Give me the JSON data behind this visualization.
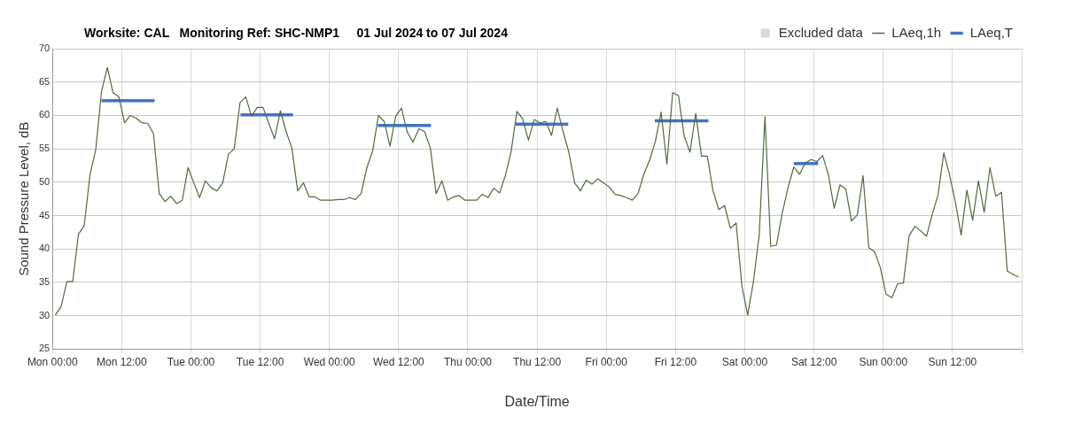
{
  "chart_data": {
    "type": "line",
    "title": "Worksite: CAL   Monitoring Ref: SHC-NMP1     01 Jul 2024 to 07 Jul 2024",
    "xlabel": "Date/Time",
    "ylabel": "Sound Pressure Level, dB",
    "xlim": [
      "2024-07-01T00:00",
      "2024-07-08T00:00"
    ],
    "xticks": [
      {
        "value": "2024-07-01T00:00",
        "label": "Mon 00:00"
      },
      {
        "value": "2024-07-01T12:00",
        "label": "Mon 12:00"
      },
      {
        "value": "2024-07-02T00:00",
        "label": "Tue 00:00"
      },
      {
        "value": "2024-07-02T12:00",
        "label": "Tue 12:00"
      },
      {
        "value": "2024-07-03T00:00",
        "label": "Wed 00:00"
      },
      {
        "value": "2024-07-03T12:00",
        "label": "Wed 12:00"
      },
      {
        "value": "2024-07-04T00:00",
        "label": "Thu 00:00"
      },
      {
        "value": "2024-07-04T12:00",
        "label": "Thu 12:00"
      },
      {
        "value": "2024-07-05T00:00",
        "label": "Fri 00:00"
      },
      {
        "value": "2024-07-05T12:00",
        "label": "Fri 12:00"
      },
      {
        "value": "2024-07-06T00:00",
        "label": "Sat 00:00"
      },
      {
        "value": "2024-07-06T12:00",
        "label": "Sat 12:00"
      },
      {
        "value": "2024-07-07T00:00",
        "label": "Sun 00:00"
      },
      {
        "value": "2024-07-07T12:00",
        "label": "Sun 12:00"
      },
      {
        "value": "2024-07-08T00:00",
        "label": null
      }
    ],
    "ylim": [
      25,
      70
    ],
    "yticks": [
      25,
      30,
      35,
      40,
      45,
      50,
      55,
      60,
      65,
      70
    ],
    "grid": true,
    "legend": "top right",
    "marker": "none",
    "line_style": "solid",
    "series": [
      {
        "name": "Excluded data",
        "type": "area",
        "color": "#d9d9d9"
      },
      {
        "name": "LAeq,1h",
        "color": "#4f6b3a",
        "x": [
          "2024-07-01T00:30",
          "2024-07-01T01:30",
          "2024-07-01T02:30",
          "2024-07-01T03:30",
          "2024-07-01T04:30",
          "2024-07-01T05:30",
          "2024-07-01T06:30",
          "2024-07-01T07:30",
          "2024-07-01T08:30",
          "2024-07-01T09:30",
          "2024-07-01T10:30",
          "2024-07-01T11:30",
          "2024-07-01T12:30",
          "2024-07-01T13:30",
          "2024-07-01T14:30",
          "2024-07-01T15:30",
          "2024-07-01T16:30",
          "2024-07-01T17:30",
          "2024-07-01T18:30",
          "2024-07-01T19:30",
          "2024-07-01T20:30",
          "2024-07-01T21:30",
          "2024-07-01T22:30",
          "2024-07-01T23:30",
          "2024-07-02T00:30",
          "2024-07-02T01:30",
          "2024-07-02T02:30",
          "2024-07-02T03:30",
          "2024-07-02T04:30",
          "2024-07-02T05:30",
          "2024-07-02T06:30",
          "2024-07-02T07:30",
          "2024-07-02T08:30",
          "2024-07-02T09:30",
          "2024-07-02T10:30",
          "2024-07-02T11:30",
          "2024-07-02T12:30",
          "2024-07-02T13:30",
          "2024-07-02T14:30",
          "2024-07-02T15:30",
          "2024-07-02T16:30",
          "2024-07-02T17:30",
          "2024-07-02T18:30",
          "2024-07-02T19:30",
          "2024-07-02T20:30",
          "2024-07-02T21:30",
          "2024-07-02T22:30",
          "2024-07-02T23:30",
          "2024-07-03T00:30",
          "2024-07-03T01:30",
          "2024-07-03T02:30",
          "2024-07-03T03:30",
          "2024-07-03T04:30",
          "2024-07-03T05:30",
          "2024-07-03T06:30",
          "2024-07-03T07:30",
          "2024-07-03T08:30",
          "2024-07-03T09:30",
          "2024-07-03T10:30",
          "2024-07-03T11:30",
          "2024-07-03T12:30",
          "2024-07-03T13:30",
          "2024-07-03T14:30",
          "2024-07-03T15:30",
          "2024-07-03T16:30",
          "2024-07-03T17:30",
          "2024-07-03T18:30",
          "2024-07-03T19:30",
          "2024-07-03T20:30",
          "2024-07-03T21:30",
          "2024-07-03T22:30",
          "2024-07-03T23:30",
          "2024-07-04T00:30",
          "2024-07-04T01:30",
          "2024-07-04T02:30",
          "2024-07-04T03:30",
          "2024-07-04T04:30",
          "2024-07-04T05:30",
          "2024-07-04T06:30",
          "2024-07-04T07:30",
          "2024-07-04T08:30",
          "2024-07-04T09:30",
          "2024-07-04T10:30",
          "2024-07-04T11:30",
          "2024-07-04T12:30",
          "2024-07-04T13:30",
          "2024-07-04T14:30",
          "2024-07-04T15:30",
          "2024-07-04T16:30",
          "2024-07-04T17:30",
          "2024-07-04T18:30",
          "2024-07-04T19:30",
          "2024-07-04T20:30",
          "2024-07-04T21:30",
          "2024-07-04T22:30",
          "2024-07-04T23:30",
          "2024-07-05T00:30",
          "2024-07-05T01:30",
          "2024-07-05T02:30",
          "2024-07-05T03:30",
          "2024-07-05T04:30",
          "2024-07-05T05:30",
          "2024-07-05T06:30",
          "2024-07-05T07:30",
          "2024-07-05T08:30",
          "2024-07-05T09:30",
          "2024-07-05T10:30",
          "2024-07-05T11:30",
          "2024-07-05T12:30",
          "2024-07-05T13:30",
          "2024-07-05T14:30",
          "2024-07-05T15:30",
          "2024-07-05T16:30",
          "2024-07-05T17:30",
          "2024-07-05T18:30",
          "2024-07-05T19:30",
          "2024-07-05T20:30",
          "2024-07-05T21:30",
          "2024-07-05T22:30",
          "2024-07-05T23:30",
          "2024-07-06T00:30",
          "2024-07-06T01:30",
          "2024-07-06T02:30",
          "2024-07-06T03:30",
          "2024-07-06T04:30",
          "2024-07-06T05:30",
          "2024-07-06T06:30",
          "2024-07-06T07:30",
          "2024-07-06T08:30",
          "2024-07-06T09:30",
          "2024-07-06T10:30",
          "2024-07-06T11:30",
          "2024-07-06T12:30",
          "2024-07-06T13:30",
          "2024-07-06T14:30",
          "2024-07-06T15:30",
          "2024-07-06T16:30",
          "2024-07-06T17:30",
          "2024-07-06T18:30",
          "2024-07-06T19:30",
          "2024-07-06T20:30",
          "2024-07-06T21:30",
          "2024-07-06T22:30",
          "2024-07-06T23:30",
          "2024-07-07T00:30",
          "2024-07-07T01:30",
          "2024-07-07T02:30",
          "2024-07-07T03:30",
          "2024-07-07T04:30",
          "2024-07-07T05:30",
          "2024-07-07T06:30",
          "2024-07-07T07:30",
          "2024-07-07T08:30",
          "2024-07-07T09:30",
          "2024-07-07T10:30",
          "2024-07-07T11:30",
          "2024-07-07T12:30",
          "2024-07-07T13:30",
          "2024-07-07T14:30",
          "2024-07-07T15:30",
          "2024-07-07T16:30",
          "2024-07-07T17:30",
          "2024-07-07T18:30",
          "2024-07-07T19:30",
          "2024-07-07T20:30",
          "2024-07-07T21:30",
          "2024-07-07T22:30",
          "2024-07-07T23:30"
        ],
        "values": [
          30.1,
          31.4,
          35.1,
          35.1,
          42.2,
          43.5,
          51.1,
          54.9,
          63.6,
          67.2,
          63.4,
          62.8,
          58.9,
          60.0,
          59.6,
          58.9,
          58.8,
          57.3,
          48.3,
          47.1,
          47.9,
          46.8,
          47.3,
          52.2,
          49.9,
          47.7,
          50.2,
          49.2,
          48.7,
          49.9,
          54.2,
          55.0,
          61.9,
          62.8,
          59.9,
          61.2,
          61.2,
          58.8,
          56.5,
          60.7,
          57.6,
          55.1,
          48.7,
          49.9,
          47.8,
          47.8,
          47.3,
          47.3,
          47.3,
          47.4,
          47.4,
          47.7,
          47.4,
          48.3,
          52.2,
          54.7,
          60.0,
          59.1,
          55.4,
          59.9,
          61.1,
          57.5,
          56.0,
          58.0,
          57.6,
          55.1,
          48.3,
          50.2,
          47.3,
          47.8,
          48.0,
          47.3,
          47.3,
          47.3,
          48.2,
          47.7,
          49.1,
          48.4,
          51.0,
          54.6,
          60.6,
          59.5,
          56.3,
          59.4,
          58.9,
          59.1,
          57.0,
          61.1,
          57.6,
          54.5,
          49.9,
          48.7,
          50.3,
          49.7,
          50.5,
          49.9,
          49.3,
          48.2,
          48.0,
          47.7,
          47.3,
          48.3,
          51.2,
          53.3,
          56.1,
          60.5,
          52.7,
          63.4,
          63.0,
          56.9,
          54.5,
          60.3,
          53.9,
          53.9,
          48.7,
          45.9,
          46.5,
          43.1,
          43.9,
          34.5,
          30.1,
          35.1,
          42.1,
          59.8,
          40.4,
          40.6,
          45.4,
          49.2,
          52.3,
          51.2,
          52.9,
          53.4,
          53.1,
          54.0,
          51.1,
          46.1,
          49.6,
          49.0,
          44.2,
          45.1,
          51.0,
          40.2,
          39.6,
          37.2,
          33.2,
          32.7,
          34.8,
          34.9,
          42.0,
          43.4,
          42.7,
          41.9,
          45.2,
          48.1,
          54.4,
          51.1,
          47.0,
          42.1,
          48.8,
          44.3,
          50.2,
          45.5,
          52.2,
          47.9,
          48.5,
          36.7,
          36.2,
          35.8
        ]
      },
      {
        "name": "LAeq,T",
        "color": "#4472c4",
        "x": [
          "2024-07-01T08:30",
          "2024-07-01T17:42",
          "2024-07-02T01:00",
          "2024-07-02T08:36",
          "2024-07-02T17:42",
          "2024-07-03T01:00",
          "2024-07-03T08:24",
          "2024-07-03T17:36",
          "2024-07-04T01:00",
          "2024-07-04T08:18",
          "2024-07-04T17:24",
          "2024-07-05T01:00",
          "2024-07-05T08:24",
          "2024-07-05T17:42",
          "2024-07-06T01:00",
          "2024-07-06T08:30",
          "2024-07-06T12:42"
        ],
        "values": [
          62.2,
          62.2,
          null,
          60.1,
          60.1,
          null,
          58.5,
          58.5,
          null,
          58.7,
          58.7,
          null,
          59.2,
          59.2,
          null,
          52.8,
          52.8
        ]
      }
    ]
  }
}
